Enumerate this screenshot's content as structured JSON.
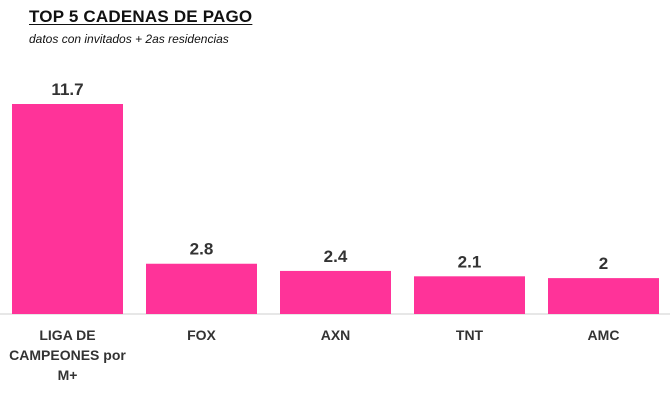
{
  "chart_data": {
    "type": "bar",
    "title": "TOP  5 CADENAS DE PAGO",
    "subtitle": "datos con invitados + 2as residencias",
    "categories": [
      "LIGA DE CAMPEONES por M+",
      "FOX",
      "AXN",
      "TNT",
      "AMC"
    ],
    "values": [
      11.7,
      2.8,
      2.4,
      2.1,
      2
    ],
    "value_labels": [
      "11.7",
      "2.8",
      "2.4",
      "2.1",
      "2"
    ],
    "bar_color": "#ff3399",
    "axis_color": "#cfcfcf",
    "ylim": [
      0,
      11.7
    ],
    "grid": false,
    "legend": "none"
  }
}
